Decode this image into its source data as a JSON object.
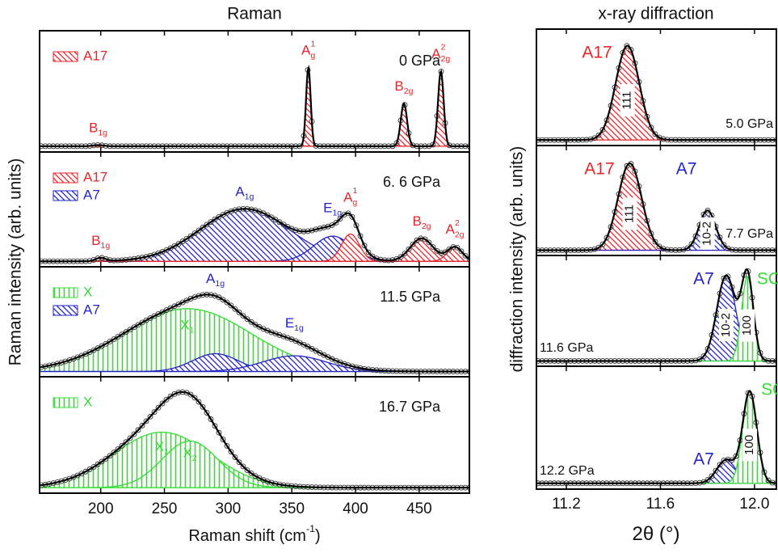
{
  "chart_data": [
    {
      "type": "peak-fit",
      "title": "Raman",
      "ylabel": "Raman intensity (arb. units)",
      "xlabel": {
        "text": "Raman shift (cm",
        "sup": "-1",
        "tail": ")"
      },
      "xlim": [
        152,
        489.4
      ],
      "ylim": [
        -0.05,
        1
      ],
      "xticks": [
        200,
        250,
        300,
        350,
        400,
        450
      ],
      "panels": [
        {
          "pressure": "0 GPa",
          "legend": [
            {
              "name": "A17",
              "color": "#e8262a",
              "hatch": "diagonal"
            }
          ],
          "peaks": [
            {
              "center": 198,
              "height": 0.01,
              "width": 4,
              "color": "#e8262a",
              "hatch": "diagonal",
              "label": {
                "text": "B",
                "sub": "1g"
              }
            },
            {
              "center": 363,
              "height": 0.68,
              "width": 1.8,
              "color": "#e8262a",
              "hatch": "diagonal",
              "label": {
                "text": "A",
                "sub": "g",
                "sup": "1"
              }
            },
            {
              "center": 438,
              "height": 0.37,
              "width": 2.5,
              "color": "#e8262a",
              "hatch": "diagonal",
              "label": {
                "text": "B",
                "sub": "2g"
              }
            },
            {
              "center": 467,
              "height": 0.65,
              "width": 2.2,
              "color": "#e8262a",
              "hatch": "diagonal",
              "label": {
                "text": "A",
                "sub": "2g",
                "sup": "2"
              }
            }
          ]
        },
        {
          "pressure": "6. 6 GPa",
          "legend": [
            {
              "name": "A17",
              "color": "#e8262a",
              "hatch": "diagonal"
            },
            {
              "name": "A7",
              "color": "#2323c8",
              "hatch": "diagonal"
            }
          ],
          "peaks": [
            {
              "center": 200,
              "height": 0.03,
              "width": 4,
              "color": "#e8262a",
              "hatch": "diagonal",
              "label": {
                "text": "B",
                "sub": "1g"
              }
            },
            {
              "center": 313,
              "height": 0.48,
              "width": 35,
              "color": "#2323c8",
              "hatch": "diagonal",
              "label": {
                "text": "A",
                "sub": "1g"
              }
            },
            {
              "center": 382,
              "height": 0.23,
              "width": 15,
              "color": "#2323c8",
              "hatch": "diagonal",
              "label": {
                "text": "E",
                "sub": "1g"
              }
            },
            {
              "center": 396,
              "height": 0.25,
              "width": 7,
              "color": "#e8262a",
              "hatch": "diagonal",
              "label": {
                "text": "A",
                "sub": "g",
                "sup": "1"
              }
            },
            {
              "center": 452,
              "height": 0.21,
              "width": 9,
              "color": "#e8262a",
              "hatch": "diagonal",
              "label": {
                "text": "B",
                "sub": "2g"
              }
            },
            {
              "center": 478,
              "height": 0.13,
              "width": 6,
              "color": "#e8262a",
              "hatch": "diagonal",
              "label": {
                "text": "A",
                "sub": "2g",
                "sup": "2"
              }
            }
          ]
        },
        {
          "pressure": "11.5 GPa",
          "legend": [
            {
              "name": "X",
              "color": "#33dd33",
              "hatch": "vertical"
            },
            {
              "name": "A7",
              "color": "#2323c8",
              "hatch": "diagonal"
            }
          ],
          "peaks": [
            {
              "center": 268,
              "height": 0.6,
              "width": 50,
              "color": "#33dd33",
              "hatch": "vertical",
              "label": {
                "text": "X",
                "sub": "1"
              }
            },
            {
              "center": 290,
              "height": 0.17,
              "width": 18,
              "color": "#2323c8",
              "hatch": "diagonal",
              "label": {
                "text": "A",
                "sub": "1g"
              }
            },
            {
              "center": 352,
              "height": 0.15,
              "width": 25,
              "color": "#2323c8",
              "hatch": "diagonal",
              "label": {
                "text": "E",
                "sub": "1g"
              }
            }
          ]
        },
        {
          "pressure": "16.7 GPa",
          "legend": [
            {
              "name": "X",
              "color": "#33dd33",
              "hatch": "vertical"
            }
          ],
          "peaks": [
            {
              "center": 248,
              "height": 0.5,
              "width": 38,
              "color": "#33dd33",
              "hatch": "vertical",
              "label": {
                "text": "X",
                "sub": "1"
              }
            },
            {
              "center": 270,
              "height": 0.42,
              "width": 22,
              "color": "#33dd33",
              "hatch": "vertical",
              "label": {
                "text": "X",
                "sub": "2"
              }
            }
          ]
        }
      ]
    },
    {
      "type": "peak-fit",
      "title": "x-ray diffraction",
      "ylabel": "diffraction intensity (arb. units)",
      "xlabel": {
        "text": "2θ (°)"
      },
      "xlim": [
        11.073,
        12.093
      ],
      "ylim": [
        -0.05,
        1
      ],
      "xticks": [
        11.2,
        11.6,
        {
          "value": 12,
          "label": "12.0"
        }
      ],
      "panels": [
        {
          "pressure": "5.0 GPa",
          "peaks": [
            {
              "name": "A17",
              "hkl": "111",
              "center": 11.46,
              "height": 0.85,
              "width": 0.05,
              "color": "#e8262a",
              "hatch": "diagonal"
            }
          ]
        },
        {
          "pressure": "7.7 GPa",
          "peaks": [
            {
              "name": "A17",
              "hkl": "111",
              "center": 11.47,
              "height": 0.83,
              "width": 0.05,
              "color": "#e8262a",
              "hatch": "diagonal"
            },
            {
              "name": "A7",
              "hkl": "10-2",
              "center": 11.8,
              "height": 0.38,
              "width": 0.035,
              "color": "#2323c8",
              "hatch": "diagonal"
            }
          ]
        },
        {
          "pressure": "11.6 GPa",
          "peaks": [
            {
              "name": "A7",
              "hkl": "10-2",
              "center": 11.88,
              "height": 0.81,
              "width": 0.04,
              "color": "#2323c8",
              "hatch": "diagonal"
            },
            {
              "name": "SC",
              "hkl": "100",
              "center": 11.97,
              "height": 0.8,
              "width": 0.025,
              "color": "#33dd33",
              "hatch": "vertical"
            }
          ]
        },
        {
          "pressure": "12.2 GPa",
          "peaks": [
            {
              "name": "A7",
              "center": 11.88,
              "height": 0.2,
              "width": 0.04,
              "color": "#2323c8",
              "hatch": "diagonal"
            },
            {
              "name": "SC",
              "hkl": "100",
              "center": 11.98,
              "height": 0.78,
              "width": 0.03,
              "color": "#33dd33",
              "hatch": "vertical"
            }
          ]
        }
      ]
    }
  ]
}
